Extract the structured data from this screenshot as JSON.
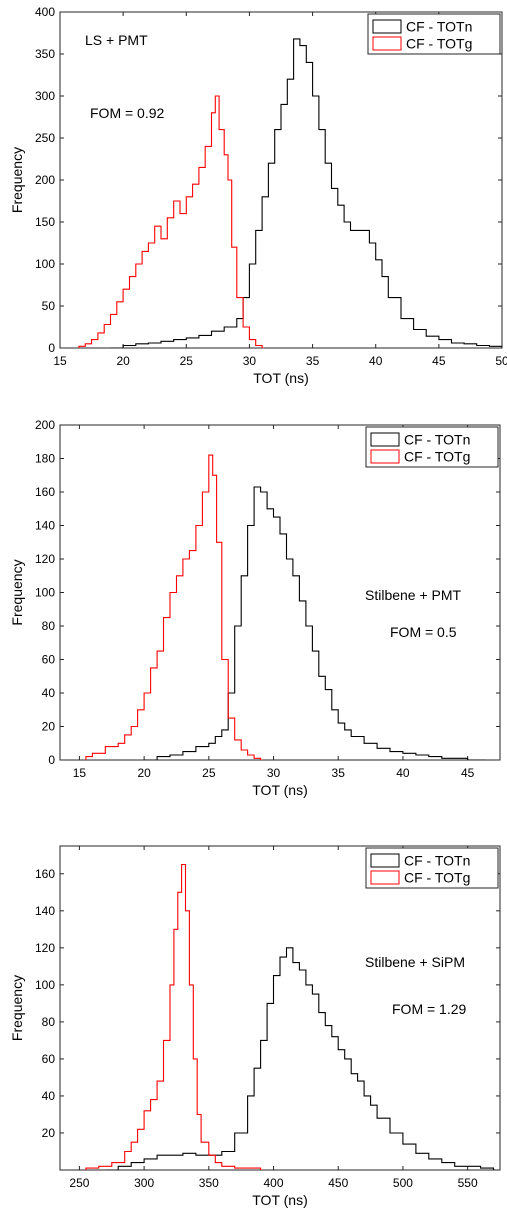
{
  "figure": "Three stacked TOT histograms",
  "colors": {
    "neutron": "#000000",
    "gamma": "#ff0000",
    "axis": "#262626",
    "background": "#ffffff"
  },
  "chart_data": [
    {
      "type": "line",
      "style": "stairs histogram",
      "xlabel": "TOT (ns)",
      "ylabel": "Frequency",
      "xlim": [
        15,
        50
      ],
      "ylim": [
        0,
        400
      ],
      "xticks": [
        15,
        20,
        25,
        30,
        35,
        40,
        45,
        50
      ],
      "yticks": [
        0,
        50,
        100,
        150,
        200,
        250,
        300,
        350,
        400
      ],
      "legend_position": "top-right",
      "annotations": [
        "LS + PMT",
        "FOM = 0.92"
      ],
      "series": [
        {
          "name": "CF - TOTn",
          "color": "#000000",
          "x": [
            19,
            20,
            21,
            22,
            23,
            24,
            25,
            26,
            27,
            28,
            29,
            29.5,
            30,
            30.5,
            31,
            31.5,
            32,
            32.5,
            33,
            33.5,
            34,
            34.5,
            35,
            35.5,
            36,
            36.5,
            37,
            37.5,
            38,
            38.5,
            39,
            39.5,
            40,
            40.5,
            41,
            42,
            43,
            44,
            45,
            46,
            47,
            48,
            49,
            50
          ],
          "y": [
            0,
            3,
            5,
            6,
            8,
            10,
            12,
            15,
            20,
            25,
            35,
            60,
            100,
            140,
            180,
            220,
            260,
            290,
            320,
            368,
            360,
            340,
            300,
            260,
            220,
            190,
            170,
            150,
            140,
            140,
            140,
            125,
            105,
            85,
            60,
            35,
            22,
            14,
            10,
            6,
            5,
            3,
            2,
            0
          ]
        },
        {
          "name": "CF - TOTg",
          "color": "#ff0000",
          "x": [
            16.5,
            17,
            17.5,
            18,
            18.5,
            19,
            19.5,
            20,
            20.5,
            21,
            21.5,
            22,
            22.5,
            23,
            23.5,
            24,
            24.5,
            25,
            25.5,
            26,
            26.5,
            27,
            27.3,
            27.6,
            28,
            28.3,
            28.6,
            29,
            29.5,
            30,
            30.5,
            31
          ],
          "y": [
            2,
            5,
            10,
            18,
            28,
            40,
            55,
            70,
            85,
            100,
            115,
            125,
            145,
            130,
            155,
            175,
            160,
            180,
            195,
            215,
            240,
            280,
            300,
            260,
            230,
            200,
            120,
            60,
            25,
            10,
            3,
            0
          ]
        }
      ]
    },
    {
      "type": "line",
      "style": "stairs histogram",
      "xlabel": "TOT (ns)",
      "ylabel": "Frequency",
      "xlim": [
        13.5,
        47.5
      ],
      "ylim": [
        0,
        200
      ],
      "xticks": [
        15,
        20,
        25,
        30,
        35,
        40,
        45
      ],
      "yticks": [
        0,
        20,
        40,
        60,
        80,
        100,
        120,
        140,
        160,
        180,
        200
      ],
      "legend_position": "top-right",
      "annotations": [
        "Stilbene + PMT",
        "FOM = 0.5"
      ],
      "series": [
        {
          "name": "CF - TOTn",
          "color": "#000000",
          "x": [
            20,
            21,
            22,
            23,
            24,
            25,
            25.5,
            26,
            26.5,
            27,
            27.5,
            28,
            28.5,
            29,
            29.5,
            30,
            30.5,
            31,
            31.5,
            32,
            32.5,
            33,
            33.5,
            34,
            34.5,
            35,
            35.5,
            36,
            37,
            38,
            39,
            40,
            41,
            42,
            43,
            44,
            45,
            46.2
          ],
          "y": [
            0,
            2,
            3,
            5,
            8,
            10,
            14,
            18,
            40,
            80,
            110,
            140,
            163,
            160,
            150,
            145,
            135,
            120,
            110,
            95,
            80,
            65,
            50,
            42,
            30,
            22,
            18,
            14,
            10,
            7,
            5,
            4,
            3,
            2,
            1,
            1,
            0,
            0
          ]
        },
        {
          "name": "CF - TOTg",
          "color": "#ff0000",
          "x": [
            15.5,
            16,
            17,
            18,
            18.5,
            19,
            19.5,
            20,
            20.5,
            21,
            21.5,
            22,
            22.5,
            23,
            23.5,
            24,
            24.5,
            25,
            25.3,
            25.6,
            26,
            26.5,
            27,
            27.5,
            28,
            28.5,
            29
          ],
          "y": [
            2,
            4,
            8,
            10,
            15,
            20,
            30,
            40,
            55,
            65,
            85,
            100,
            110,
            120,
            125,
            140,
            160,
            182,
            170,
            130,
            60,
            25,
            12,
            6,
            3,
            1,
            0
          ]
        }
      ]
    },
    {
      "type": "line",
      "style": "stairs histogram",
      "xlabel": "TOT (ns)",
      "ylabel": "Frequency",
      "xlim": [
        235,
        575
      ],
      "ylim": [
        0,
        175
      ],
      "xticks": [
        250,
        300,
        350,
        400,
        450,
        500,
        550
      ],
      "yticks": [
        20,
        40,
        60,
        80,
        100,
        120,
        140,
        160
      ],
      "legend_position": "top-right",
      "annotations": [
        "Stilbene + SiPM",
        "FOM = 1.29"
      ],
      "series": [
        {
          "name": "CF - TOTn",
          "color": "#000000",
          "x": [
            270,
            280,
            290,
            300,
            310,
            320,
            330,
            340,
            350,
            360,
            370,
            380,
            385,
            390,
            395,
            400,
            405,
            410,
            415,
            420,
            425,
            430,
            435,
            440,
            445,
            450,
            455,
            460,
            465,
            470,
            475,
            480,
            490,
            500,
            510,
            520,
            530,
            540,
            550,
            560,
            570
          ],
          "y": [
            0,
            2,
            4,
            6,
            8,
            8,
            9,
            8,
            8,
            10,
            20,
            40,
            55,
            70,
            90,
            105,
            115,
            120,
            112,
            108,
            100,
            95,
            85,
            78,
            72,
            65,
            60,
            52,
            48,
            40,
            35,
            28,
            20,
            14,
            9,
            6,
            4,
            2,
            2,
            1,
            0
          ]
        },
        {
          "name": "CF - TOTg",
          "color": "#ff0000",
          "x": [
            255,
            265,
            275,
            285,
            290,
            295,
            300,
            305,
            310,
            315,
            320,
            323,
            326,
            329,
            332,
            335,
            338,
            341,
            344,
            350,
            355,
            360,
            370,
            380,
            390
          ],
          "y": [
            1,
            2,
            4,
            10,
            15,
            22,
            32,
            38,
            48,
            70,
            100,
            130,
            150,
            165,
            140,
            100,
            60,
            30,
            15,
            8,
            4,
            2,
            1,
            1,
            0
          ]
        }
      ]
    }
  ]
}
